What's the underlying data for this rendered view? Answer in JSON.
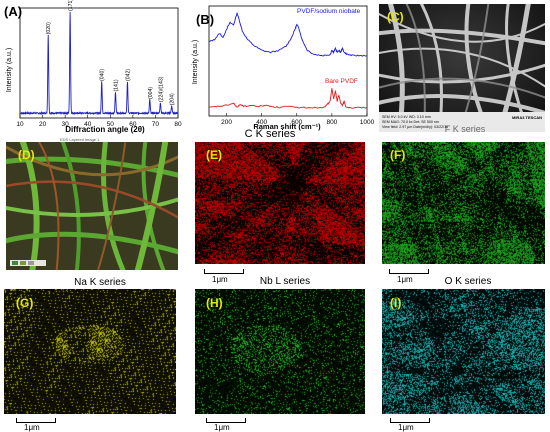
{
  "panels": {
    "A": {
      "label": "(A)"
    },
    "B": {
      "label": "(B)"
    },
    "C": {
      "label": "(C)"
    },
    "D": {
      "label": "(D)"
    },
    "E": {
      "label": "(E)"
    },
    "F": {
      "label": "(F)"
    },
    "G": {
      "label": "(G)"
    },
    "H": {
      "label": "(H)"
    },
    "I": {
      "label": "(I)"
    }
  },
  "sem_info": {
    "title": "EDS Layered Image 1",
    "brand": "MIRA3 TESCAN",
    "line1": "SEM HV: 5.0 kV   WD: 3.10 mm",
    "line2": "SEM MAG: 70.0 kx   Det: SE   500 nm",
    "line3": "View field: 2.97 µm   Date(m/d/y): 03/22/18"
  },
  "series_labels": {
    "C": "C K series",
    "Na": "Na K series",
    "Nb": "Nb L series",
    "O": "O K series",
    "F": "F K series"
  },
  "scale_bar": "1μm",
  "colors": {
    "C": "#d40000",
    "F": "#1fb81f",
    "Na": "#d4d400",
    "Nb": "#28c828",
    "O": "#1ec8c8"
  },
  "chart_data": [
    {
      "type": "line",
      "panel": "A",
      "xlabel": "Diffraction angle (2θ)",
      "ylabel": "Intensity (a.u.)",
      "xlim": [
        10,
        80
      ],
      "x_ticks": [
        "10",
        "20",
        "30",
        "40",
        "50",
        "60",
        "70",
        "80"
      ],
      "peaks": [
        {
          "x": 22.5,
          "label": "(020)",
          "h": 0.74
        },
        {
          "x": 32.2,
          "label": "(171)/(002)",
          "h": 0.96
        },
        {
          "x": 46.2,
          "label": "(040)",
          "h": 0.3
        },
        {
          "x": 52.3,
          "label": "(141)",
          "h": 0.2
        },
        {
          "x": 57.6,
          "label": "(042)",
          "h": 0.3
        },
        {
          "x": 67.5,
          "label": "(004)",
          "h": 0.13
        },
        {
          "x": 72.2,
          "label": "(224)/(143)",
          "h": 0.1
        },
        {
          "x": 77.2,
          "label": "(204)",
          "h": 0.07
        }
      ],
      "color": "#2020c8"
    },
    {
      "type": "line",
      "panel": "B",
      "xlabel": "Raman shift (cm⁻¹)",
      "ylabel": "Intensity (a.u.)",
      "xlim": [
        100,
        1000
      ],
      "x_ticks": [
        "200",
        "400",
        "600",
        "800",
        "1000"
      ],
      "series": [
        {
          "name": "PVDF/sodium niobate",
          "color": "#1a1ae6",
          "x": [
            100,
            130,
            160,
            180,
            200,
            220,
            240,
            260,
            270,
            290,
            320,
            360,
            400,
            450,
            500,
            540,
            570,
            590,
            600,
            610,
            630,
            660,
            700,
            750,
            790,
            800,
            810,
            820,
            830,
            840,
            850,
            860,
            870,
            890,
            920,
            960,
            1000
          ],
          "y": [
            0.7,
            0.72,
            0.78,
            0.74,
            0.82,
            0.88,
            0.86,
            0.97,
            0.92,
            0.8,
            0.72,
            0.66,
            0.62,
            0.6,
            0.62,
            0.66,
            0.74,
            0.82,
            0.86,
            0.84,
            0.72,
            0.62,
            0.58,
            0.57,
            0.58,
            0.62,
            0.6,
            0.64,
            0.6,
            0.62,
            0.6,
            0.64,
            0.6,
            0.58,
            0.57,
            0.57,
            0.57
          ]
        },
        {
          "name": "Bare PVDF",
          "color": "#e61a1a",
          "x": [
            100,
            150,
            200,
            240,
            260,
            280,
            300,
            340,
            380,
            420,
            460,
            500,
            540,
            600,
            650,
            700,
            740,
            770,
            790,
            800,
            810,
            820,
            830,
            840,
            850,
            860,
            870,
            880,
            900,
            940,
            1000
          ],
          "y": [
            0.08,
            0.09,
            0.1,
            0.12,
            0.08,
            0.11,
            0.09,
            0.1,
            0.09,
            0.1,
            0.09,
            0.08,
            0.09,
            0.08,
            0.08,
            0.08,
            0.08,
            0.1,
            0.14,
            0.26,
            0.16,
            0.24,
            0.14,
            0.2,
            0.12,
            0.1,
            0.14,
            0.08,
            0.08,
            0.08,
            0.08
          ]
        }
      ]
    }
  ]
}
